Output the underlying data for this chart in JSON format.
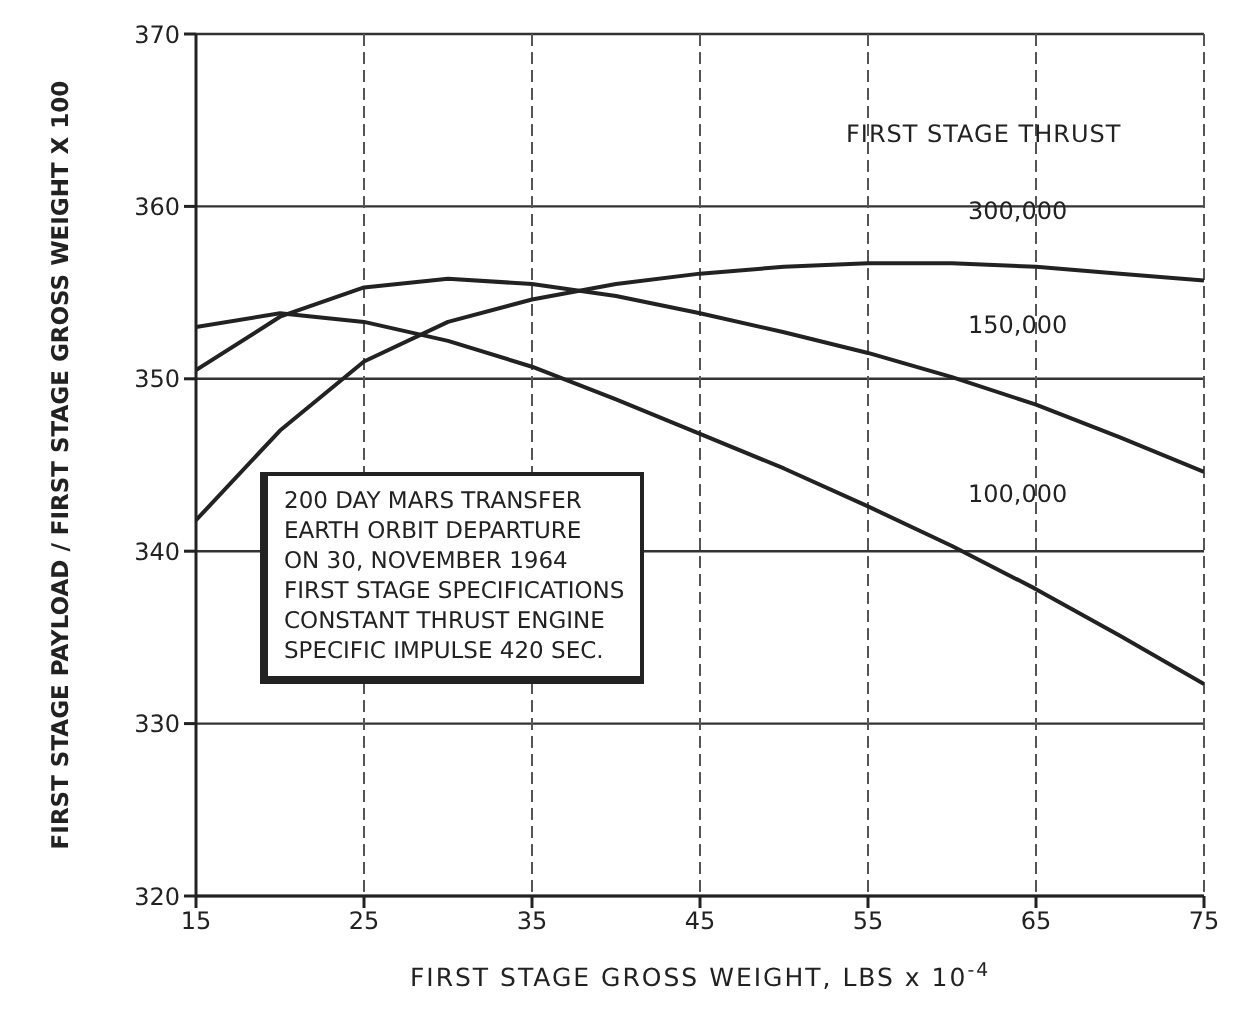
{
  "chart_data": {
    "type": "line",
    "xlabel": "FIRST STAGE GROSS WEIGHT, LBS x 10$^{-4}$",
    "ylabel": "FIRST STAGE PAYLOAD / FIRST STAGE GROSS WEIGHT  X 100",
    "legend_title": "FIRST STAGE THRUST",
    "x": [
      15,
      20,
      25,
      30,
      35,
      40,
      45,
      50,
      55,
      60,
      65,
      70,
      75
    ],
    "series": [
      {
        "name": "300,000",
        "color": "#222222",
        "values": [
          341.8,
          347,
          351,
          353.3,
          354.6,
          355.5,
          356.1,
          356.5,
          356.7,
          356.7,
          356.5,
          356.1,
          355.7
        ]
      },
      {
        "name": "150,000",
        "color": "#222222",
        "values": [
          350.5,
          353.6,
          355.3,
          355.8,
          355.5,
          354.8,
          353.8,
          352.7,
          351.5,
          350.1,
          348.5,
          346.6,
          344.6
        ]
      },
      {
        "name": "100,000",
        "color": "#222222",
        "values": [
          353,
          353.8,
          353.3,
          352.2,
          350.7,
          348.8,
          346.8,
          344.8,
          342.6,
          340.3,
          337.8,
          335.1,
          332.3
        ]
      }
    ],
    "xlim": [
      15,
      75
    ],
    "xticks": [
      15,
      25,
      35,
      45,
      55,
      65,
      75
    ],
    "ylim": [
      320,
      370
    ],
    "yticks": [
      320,
      330,
      340,
      350,
      360,
      370
    ],
    "grid": true,
    "legend": false,
    "marker": "none",
    "line_style": "solid",
    "annotations": [
      "200 DAY MARS TRANSFER",
      "EARTH ORBIT DEPARTURE",
      "ON 30, NOVEMBER 1964",
      "FIRST STAGE SPECIFICATIONS",
      "CONSTANT THRUST ENGINE",
      "SPECIFIC IMPULSE   420 SEC."
    ]
  }
}
